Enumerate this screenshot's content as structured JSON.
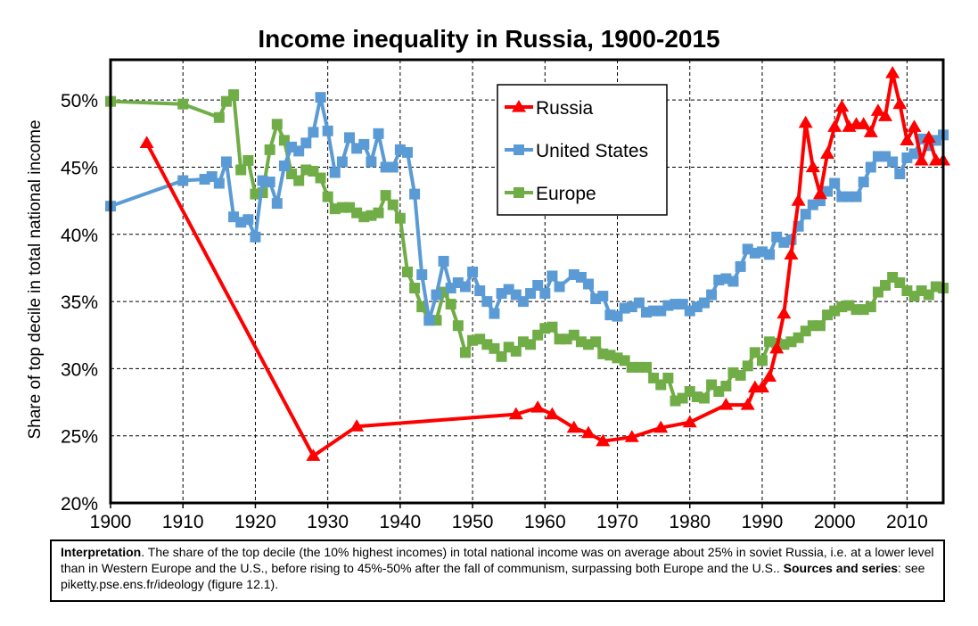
{
  "chart_data": {
    "type": "line",
    "title": "Income inequality in Russia, 1900-2015",
    "ylabel": "Share of top decile in total national income",
    "xlabel": "",
    "xlim": [
      1900,
      2015
    ],
    "ylim": [
      20,
      53
    ],
    "x_ticks": [
      "1900",
      "1910",
      "1920",
      "1930",
      "1940",
      "1950",
      "1960",
      "1970",
      "1980",
      "1990",
      "2000",
      "2010"
    ],
    "y_ticks": [
      "20%",
      "25%",
      "30%",
      "35%",
      "40%",
      "45%",
      "50%"
    ],
    "grid": "dashed",
    "legend_position": "top-center",
    "series": [
      {
        "name": "Russia",
        "color": "#ff0000",
        "marker": "triangle",
        "points": [
          [
            1905,
            46.8
          ],
          [
            1928,
            23.5
          ],
          [
            1934,
            25.7
          ],
          [
            1956,
            26.6
          ],
          [
            1959,
            27.1
          ],
          [
            1961,
            26.6
          ],
          [
            1964,
            25.6
          ],
          [
            1966,
            25.2
          ],
          [
            1968,
            24.6
          ],
          [
            1972,
            24.9
          ],
          [
            1976,
            25.6
          ],
          [
            1980,
            26.0
          ],
          [
            1985,
            27.3
          ],
          [
            1988,
            27.3
          ],
          [
            1989,
            28.6
          ],
          [
            1990,
            28.6
          ],
          [
            1991,
            29.4
          ],
          [
            1992,
            31.5
          ],
          [
            1993,
            34.1
          ],
          [
            1994,
            38.5
          ],
          [
            1995,
            42.5
          ],
          [
            1996,
            48.3
          ],
          [
            1997,
            45.0
          ],
          [
            1998,
            43.0
          ],
          [
            1999,
            46.0
          ],
          [
            2000,
            48.0
          ],
          [
            2001,
            49.5
          ],
          [
            2002,
            48.0
          ],
          [
            2003,
            48.2
          ],
          [
            2004,
            48.2
          ],
          [
            2005,
            47.6
          ],
          [
            2006,
            49.2
          ],
          [
            2007,
            48.8
          ],
          [
            2008,
            52.0
          ],
          [
            2009,
            49.7
          ],
          [
            2010,
            47.0
          ],
          [
            2011,
            48.0
          ],
          [
            2012,
            45.5
          ],
          [
            2013,
            47.2
          ],
          [
            2014,
            45.5
          ],
          [
            2015,
            45.5
          ]
        ]
      },
      {
        "name": "United States",
        "color": "#5b9bd5",
        "marker": "square",
        "points": [
          [
            1900,
            42.1
          ],
          [
            1910,
            44.0
          ],
          [
            1913,
            44.1
          ],
          [
            1914,
            44.3
          ],
          [
            1915,
            43.8
          ],
          [
            1916,
            45.4
          ],
          [
            1917,
            41.3
          ],
          [
            1918,
            40.9
          ],
          [
            1919,
            41.1
          ],
          [
            1920,
            39.8
          ],
          [
            1921,
            44.0
          ],
          [
            1922,
            43.9
          ],
          [
            1923,
            42.3
          ],
          [
            1924,
            45.1
          ],
          [
            1925,
            46.5
          ],
          [
            1926,
            46.2
          ],
          [
            1927,
            46.8
          ],
          [
            1928,
            47.6
          ],
          [
            1929,
            50.2
          ],
          [
            1930,
            47.7
          ],
          [
            1931,
            44.6
          ],
          [
            1932,
            45.4
          ],
          [
            1933,
            47.2
          ],
          [
            1934,
            46.4
          ],
          [
            1935,
            46.7
          ],
          [
            1936,
            45.4
          ],
          [
            1937,
            47.5
          ],
          [
            1938,
            45.0
          ],
          [
            1939,
            45.0
          ],
          [
            1940,
            46.3
          ],
          [
            1941,
            46.1
          ],
          [
            1942,
            43.0
          ],
          [
            1943,
            37.0
          ],
          [
            1944,
            33.6
          ],
          [
            1945,
            35.5
          ],
          [
            1946,
            38.0
          ],
          [
            1947,
            36.0
          ],
          [
            1948,
            36.4
          ],
          [
            1949,
            36.1
          ],
          [
            1950,
            37.2
          ],
          [
            1951,
            35.8
          ],
          [
            1952,
            35.0
          ],
          [
            1953,
            34.1
          ],
          [
            1954,
            35.6
          ],
          [
            1955,
            35.9
          ],
          [
            1956,
            35.5
          ],
          [
            1957,
            35.0
          ],
          [
            1958,
            35.6
          ],
          [
            1959,
            36.2
          ],
          [
            1960,
            35.6
          ],
          [
            1961,
            36.9
          ],
          [
            1962,
            36.1
          ],
          [
            1964,
            37.0
          ],
          [
            1965,
            36.8
          ],
          [
            1966,
            36.3
          ],
          [
            1967,
            35.2
          ],
          [
            1968,
            35.4
          ],
          [
            1969,
            34.0
          ],
          [
            1970,
            33.9
          ],
          [
            1971,
            34.5
          ],
          [
            1972,
            34.6
          ],
          [
            1973,
            34.9
          ],
          [
            1974,
            34.2
          ],
          [
            1975,
            34.3
          ],
          [
            1976,
            34.3
          ],
          [
            1977,
            34.7
          ],
          [
            1978,
            34.8
          ],
          [
            1979,
            34.8
          ],
          [
            1980,
            34.3
          ],
          [
            1981,
            34.6
          ],
          [
            1982,
            34.9
          ],
          [
            1983,
            35.5
          ],
          [
            1984,
            36.6
          ],
          [
            1985,
            36.7
          ],
          [
            1986,
            36.5
          ],
          [
            1987,
            37.6
          ],
          [
            1988,
            38.9
          ],
          [
            1989,
            38.6
          ],
          [
            1990,
            38.7
          ],
          [
            1991,
            38.5
          ],
          [
            1992,
            39.8
          ],
          [
            1993,
            39.4
          ],
          [
            1994,
            39.6
          ],
          [
            1995,
            40.6
          ],
          [
            1996,
            41.5
          ],
          [
            1997,
            42.2
          ],
          [
            1998,
            42.5
          ],
          [
            1999,
            43.2
          ],
          [
            2000,
            43.8
          ],
          [
            2001,
            42.8
          ],
          [
            2002,
            42.8
          ],
          [
            2003,
            42.8
          ],
          [
            2004,
            43.9
          ],
          [
            2005,
            45.0
          ],
          [
            2006,
            45.8
          ],
          [
            2007,
            45.8
          ],
          [
            2008,
            45.4
          ],
          [
            2009,
            44.5
          ],
          [
            2010,
            45.7
          ],
          [
            2011,
            46.0
          ],
          [
            2012,
            47.1
          ],
          [
            2013,
            46.6
          ],
          [
            2014,
            47.0
          ],
          [
            2015,
            47.4
          ]
        ]
      },
      {
        "name": "Europe",
        "color": "#70ad47",
        "marker": "square",
        "points": [
          [
            1900,
            49.9
          ],
          [
            1910,
            49.7
          ],
          [
            1915,
            48.7
          ],
          [
            1916,
            49.9
          ],
          [
            1917,
            50.4
          ],
          [
            1918,
            44.8
          ],
          [
            1919,
            45.5
          ],
          [
            1920,
            43.0
          ],
          [
            1921,
            43.1
          ],
          [
            1922,
            46.3
          ],
          [
            1923,
            48.2
          ],
          [
            1924,
            47.0
          ],
          [
            1925,
            44.5
          ],
          [
            1926,
            44.0
          ],
          [
            1927,
            44.8
          ],
          [
            1928,
            44.7
          ],
          [
            1929,
            44.2
          ],
          [
            1930,
            42.8
          ],
          [
            1931,
            41.9
          ],
          [
            1932,
            42.0
          ],
          [
            1933,
            42.0
          ],
          [
            1934,
            41.6
          ],
          [
            1935,
            41.3
          ],
          [
            1936,
            41.4
          ],
          [
            1937,
            41.6
          ],
          [
            1938,
            42.9
          ],
          [
            1939,
            42.2
          ],
          [
            1940,
            41.2
          ],
          [
            1941,
            37.2
          ],
          [
            1942,
            36.0
          ],
          [
            1943,
            34.6
          ],
          [
            1944,
            33.6
          ],
          [
            1945,
            33.6
          ],
          [
            1946,
            35.7
          ],
          [
            1947,
            34.8
          ],
          [
            1948,
            33.2
          ],
          [
            1949,
            31.2
          ],
          [
            1950,
            32.1
          ],
          [
            1951,
            32.2
          ],
          [
            1952,
            31.8
          ],
          [
            1953,
            31.5
          ],
          [
            1954,
            30.9
          ],
          [
            1955,
            31.6
          ],
          [
            1956,
            31.3
          ],
          [
            1957,
            32.0
          ],
          [
            1958,
            31.8
          ],
          [
            1959,
            32.5
          ],
          [
            1960,
            33.0
          ],
          [
            1961,
            33.1
          ],
          [
            1962,
            32.2
          ],
          [
            1963,
            32.2
          ],
          [
            1964,
            32.5
          ],
          [
            1965,
            32.0
          ],
          [
            1966,
            31.8
          ],
          [
            1967,
            32.0
          ],
          [
            1968,
            31.1
          ],
          [
            1969,
            31.0
          ],
          [
            1970,
            30.8
          ],
          [
            1971,
            30.6
          ],
          [
            1972,
            30.1
          ],
          [
            1973,
            30.1
          ],
          [
            1974,
            30.1
          ],
          [
            1975,
            29.3
          ],
          [
            1976,
            28.8
          ],
          [
            1977,
            29.3
          ],
          [
            1978,
            27.6
          ],
          [
            1979,
            27.8
          ],
          [
            1980,
            28.3
          ],
          [
            1981,
            27.9
          ],
          [
            1982,
            27.8
          ],
          [
            1983,
            28.8
          ],
          [
            1984,
            28.3
          ],
          [
            1985,
            28.7
          ],
          [
            1986,
            29.7
          ],
          [
            1987,
            29.5
          ],
          [
            1988,
            30.2
          ],
          [
            1989,
            31.2
          ],
          [
            1990,
            30.6
          ],
          [
            1991,
            32.0
          ],
          [
            1992,
            31.9
          ],
          [
            1993,
            31.8
          ],
          [
            1994,
            32.0
          ],
          [
            1995,
            32.3
          ],
          [
            1996,
            32.8
          ],
          [
            1997,
            33.2
          ],
          [
            1998,
            33.2
          ],
          [
            1999,
            34.0
          ],
          [
            2000,
            34.3
          ],
          [
            2001,
            34.6
          ],
          [
            2002,
            34.7
          ],
          [
            2003,
            34.4
          ],
          [
            2004,
            34.4
          ],
          [
            2005,
            34.6
          ],
          [
            2006,
            35.7
          ],
          [
            2007,
            36.2
          ],
          [
            2008,
            36.8
          ],
          [
            2009,
            36.4
          ],
          [
            2010,
            35.8
          ],
          [
            2011,
            35.4
          ],
          [
            2012,
            35.8
          ],
          [
            2013,
            35.5
          ],
          [
            2014,
            36.1
          ],
          [
            2015,
            36.0
          ]
        ]
      }
    ]
  },
  "note": {
    "lead": "Interpretation",
    "text": ". The share of the top decile (the 10% highest incomes) in total national income was on average about 25% in soviet Russia, i.e. at a lower level than in Western Europe and the U.S., before rising to 45%-50% after the fall of communism, surpassing both Europe and the U.S.. ",
    "sources_label": "Sources and series",
    "sources_text": ": see piketty.pse.ens.fr/ideology (figure 12.1)."
  }
}
